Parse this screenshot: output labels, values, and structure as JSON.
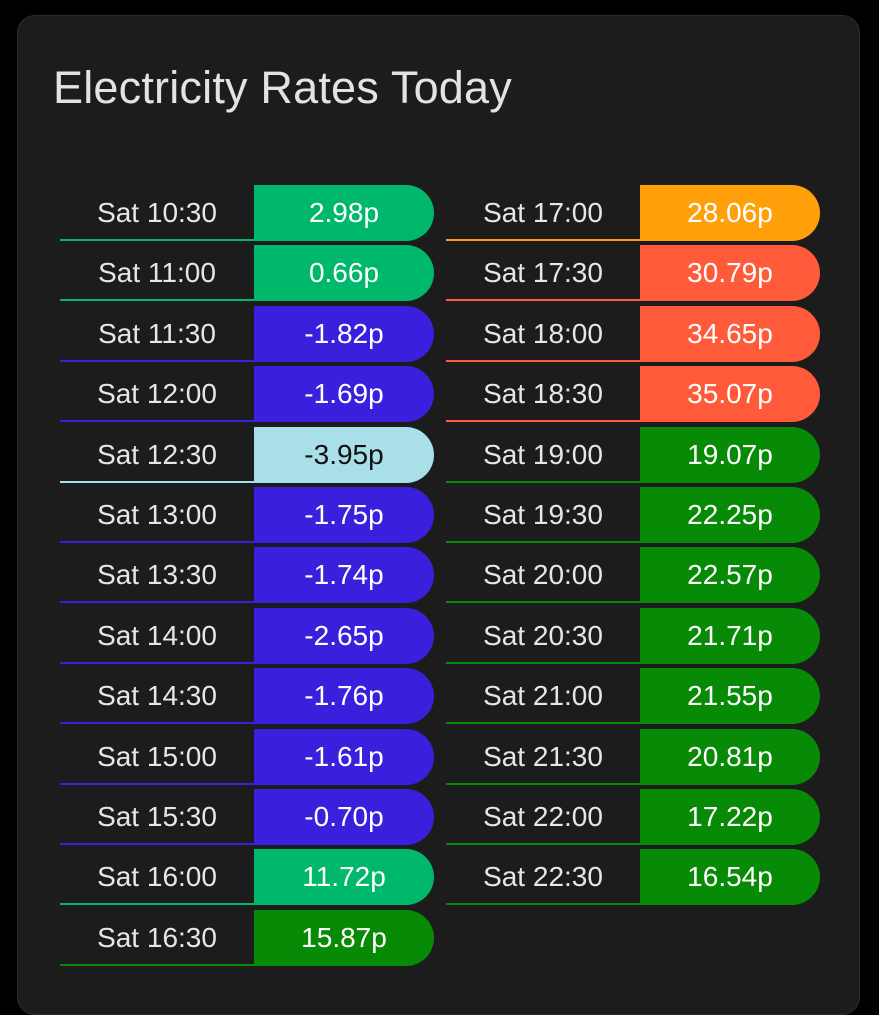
{
  "card": {
    "title": "Electricity Rates Today"
  },
  "colors": {
    "card_background": "#1c1c1c",
    "teal": "#00b86b",
    "blue": "#3a1fdc",
    "light_blue": "#a8dfe9",
    "green": "#078a06",
    "orange": "#ff9f0a",
    "red_orange": "#ff5a3a"
  },
  "left_column": [
    {
      "time": "Sat 10:30",
      "rate": "2.98p",
      "color": "#00b86b",
      "text_color": "#ffffff"
    },
    {
      "time": "Sat 11:00",
      "rate": "0.66p",
      "color": "#00b86b",
      "text_color": "#ffffff"
    },
    {
      "time": "Sat 11:30",
      "rate": "-1.82p",
      "color": "#3a1fdc",
      "text_color": "#ffffff"
    },
    {
      "time": "Sat 12:00",
      "rate": "-1.69p",
      "color": "#3a1fdc",
      "text_color": "#ffffff"
    },
    {
      "time": "Sat 12:30",
      "rate": "-3.95p",
      "color": "#a8dfe9",
      "text_color": "#111111"
    },
    {
      "time": "Sat 13:00",
      "rate": "-1.75p",
      "color": "#3a1fdc",
      "text_color": "#ffffff"
    },
    {
      "time": "Sat 13:30",
      "rate": "-1.74p",
      "color": "#3a1fdc",
      "text_color": "#ffffff"
    },
    {
      "time": "Sat 14:00",
      "rate": "-2.65p",
      "color": "#3a1fdc",
      "text_color": "#ffffff"
    },
    {
      "time": "Sat 14:30",
      "rate": "-1.76p",
      "color": "#3a1fdc",
      "text_color": "#ffffff"
    },
    {
      "time": "Sat 15:00",
      "rate": "-1.61p",
      "color": "#3a1fdc",
      "text_color": "#ffffff"
    },
    {
      "time": "Sat 15:30",
      "rate": "-0.70p",
      "color": "#3a1fdc",
      "text_color": "#ffffff"
    },
    {
      "time": "Sat 16:00",
      "rate": "11.72p",
      "color": "#00b86b",
      "text_color": "#ffffff"
    },
    {
      "time": "Sat 16:30",
      "rate": "15.87p",
      "color": "#078a06",
      "text_color": "#ffffff"
    }
  ],
  "right_column": [
    {
      "time": "Sat 17:00",
      "rate": "28.06p",
      "color": "#ff9f0a",
      "text_color": "#ffffff"
    },
    {
      "time": "Sat 17:30",
      "rate": "30.79p",
      "color": "#ff5a3a",
      "text_color": "#ffffff"
    },
    {
      "time": "Sat 18:00",
      "rate": "34.65p",
      "color": "#ff5a3a",
      "text_color": "#ffffff"
    },
    {
      "time": "Sat 18:30",
      "rate": "35.07p",
      "color": "#ff5a3a",
      "text_color": "#ffffff"
    },
    {
      "time": "Sat 19:00",
      "rate": "19.07p",
      "color": "#078a06",
      "text_color": "#ffffff"
    },
    {
      "time": "Sat 19:30",
      "rate": "22.25p",
      "color": "#078a06",
      "text_color": "#ffffff"
    },
    {
      "time": "Sat 20:00",
      "rate": "22.57p",
      "color": "#078a06",
      "text_color": "#ffffff"
    },
    {
      "time": "Sat 20:30",
      "rate": "21.71p",
      "color": "#078a06",
      "text_color": "#ffffff"
    },
    {
      "time": "Sat 21:00",
      "rate": "21.55p",
      "color": "#078a06",
      "text_color": "#ffffff"
    },
    {
      "time": "Sat 21:30",
      "rate": "20.81p",
      "color": "#078a06",
      "text_color": "#ffffff"
    },
    {
      "time": "Sat 22:00",
      "rate": "17.22p",
      "color": "#078a06",
      "text_color": "#ffffff"
    },
    {
      "time": "Sat 22:30",
      "rate": "16.54p",
      "color": "#078a06",
      "text_color": "#ffffff"
    }
  ]
}
